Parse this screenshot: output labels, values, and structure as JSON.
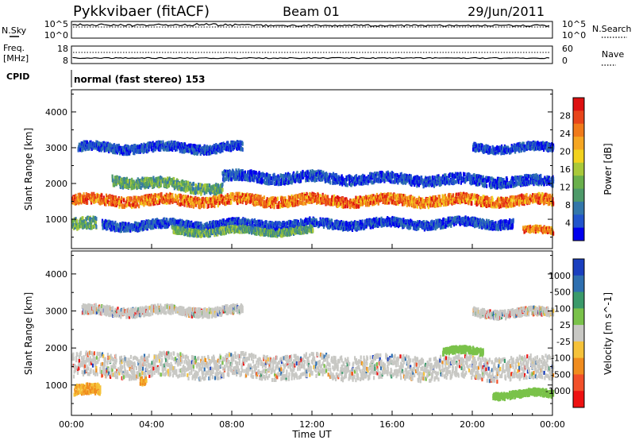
{
  "header": {
    "station": "Pykkvibaer (fitACF)",
    "beam": "Beam 01",
    "date": "29/Jun/2011"
  },
  "strip_noise": {
    "left_label": "N.Sky",
    "right_label": "N.Search",
    "left_ticks": [
      "10^5",
      "10^0"
    ],
    "right_ticks": [
      "10^5",
      "10^0"
    ]
  },
  "strip_freq": {
    "left_label_line1": "Freq.",
    "left_label_line2": "[MHz]",
    "right_label": "Nave",
    "left_ticks": [
      "18",
      "8"
    ],
    "right_ticks": [
      "60",
      "0"
    ]
  },
  "cpid": {
    "label": "CPID",
    "mode_text": "normal (fast stereo) 153"
  },
  "x_axis": {
    "title": "Time UT",
    "ticks": [
      "00:00",
      "04:00",
      "08:00",
      "12:00",
      "16:00",
      "20:00",
      "00:00"
    ]
  },
  "chart_data": [
    {
      "type": "heatmap",
      "name": "power-panel",
      "ylabel": "Slant Range [km]",
      "ylim": [
        180,
        4620
      ],
      "yticks": [
        1000,
        2000,
        3000,
        4000
      ],
      "xlim_hours": [
        0,
        24
      ],
      "colorbar": {
        "title": "Power [dB]",
        "ticks": [
          "4",
          "8",
          "12",
          "16",
          "20",
          "24",
          "28"
        ],
        "colors": [
          "#0000ee",
          "#2255cc",
          "#3377aa",
          "#4e9a6a",
          "#6ab04c",
          "#a9c93a",
          "#f2d21e",
          "#f5a623",
          "#f07a1a",
          "#e8451a",
          "#dd1010"
        ]
      },
      "bands": [
        {
          "t0": 0.0,
          "t1": 24.0,
          "r_start": 1580,
          "r_end": 1580,
          "width": 260,
          "level": "high"
        },
        {
          "t0": 0.3,
          "t1": 8.5,
          "r_start": 3050,
          "r_end": 3050,
          "width": 220,
          "level": "low"
        },
        {
          "t0": 20.0,
          "t1": 24.0,
          "r_start": 3050,
          "r_end": 3050,
          "width": 200,
          "level": "low"
        },
        {
          "t0": 2.0,
          "t1": 7.5,
          "r_start": 2150,
          "r_end": 1900,
          "width": 260,
          "level": "mid"
        },
        {
          "t0": 7.5,
          "t1": 24.0,
          "r_start": 2250,
          "r_end": 2100,
          "width": 260,
          "level": "low"
        },
        {
          "t0": 1.5,
          "t1": 22.0,
          "r_start": 880,
          "r_end": 950,
          "width": 220,
          "level": "low"
        },
        {
          "t0": 5.0,
          "t1": 12.0,
          "r_start": 720,
          "r_end": 720,
          "width": 160,
          "level": "mid"
        },
        {
          "t0": 22.5,
          "t1": 24.0,
          "r_start": 720,
          "r_end": 720,
          "width": 160,
          "level": "high"
        },
        {
          "t0": 0.0,
          "t1": 1.2,
          "r_start": 900,
          "r_end": 900,
          "width": 300,
          "level": "mid"
        }
      ]
    },
    {
      "type": "heatmap",
      "name": "velocity-panel",
      "ylabel": "Slant Range [km]",
      "ylim": [
        180,
        4620
      ],
      "yticks": [
        1000,
        2000,
        3000,
        4000
      ],
      "xlim_hours": [
        0,
        24
      ],
      "colorbar": {
        "title": "Velocity [m s^-1]",
        "ticks": [
          "-1000",
          "-500",
          "-100",
          "-25",
          "25",
          "100",
          "500",
          "1000"
        ],
        "colors": [
          "#ee1111",
          "#f2502a",
          "#f08c1e",
          "#f5c23a",
          "#c8c8c4",
          "#7ac24a",
          "#3a9a6a",
          "#2e6fb0",
          "#1a3fbf"
        ]
      },
      "bands": [
        {
          "t0": 0.0,
          "t1": 24.0,
          "r_start": 1580,
          "r_end": 1500,
          "width": 620,
          "level": "grey"
        },
        {
          "t0": 0.5,
          "t1": 8.5,
          "r_start": 3050,
          "r_end": 3050,
          "width": 220,
          "level": "grey"
        },
        {
          "t0": 20.0,
          "t1": 24.0,
          "r_start": 3000,
          "r_end": 3000,
          "width": 200,
          "level": "grey"
        },
        {
          "t0": 0.1,
          "t1": 1.4,
          "r_start": 900,
          "r_end": 900,
          "width": 260,
          "level": "orange"
        },
        {
          "t0": 3.4,
          "t1": 3.7,
          "r_start": 1180,
          "r_end": 1180,
          "width": 200,
          "level": "orange"
        },
        {
          "t0": 18.5,
          "t1": 20.5,
          "r_start": 1950,
          "r_end": 1950,
          "width": 160,
          "level": "green"
        },
        {
          "t0": 21.0,
          "t1": 24.0,
          "r_start": 800,
          "r_end": 800,
          "width": 160,
          "level": "green"
        }
      ]
    }
  ]
}
